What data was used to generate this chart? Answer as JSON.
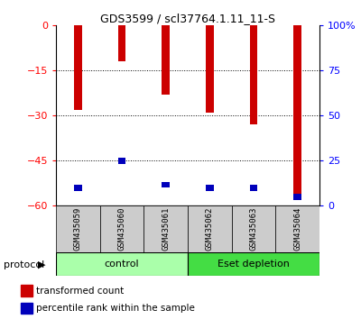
{
  "title": "GDS3599 / scl37764.1.11_11-S",
  "samples": [
    "GSM435059",
    "GSM435060",
    "GSM435061",
    "GSM435062",
    "GSM435063",
    "GSM435064"
  ],
  "red_values": [
    -28,
    -12,
    -23,
    -29,
    -33,
    -57
  ],
  "blue_values": [
    -55,
    -46,
    -54,
    -55,
    -55,
    -58
  ],
  "blue_heights": [
    2.0,
    2.0,
    2.0,
    2.0,
    2.0,
    2.0
  ],
  "ylim": [
    -60,
    0
  ],
  "yticks_left": [
    0,
    -15,
    -30,
    -45,
    -60
  ],
  "yticks_right": [
    0,
    25,
    50,
    75,
    100
  ],
  "right_ylim": [
    0,
    100
  ],
  "groups": [
    {
      "label": "control",
      "start": 0,
      "end": 3,
      "color": "#aaffaa"
    },
    {
      "label": "Eset depletion",
      "start": 3,
      "end": 6,
      "color": "#44dd44"
    }
  ],
  "protocol_label": "protocol",
  "legend_red": "transformed count",
  "legend_blue": "percentile rank within the sample",
  "bar_width": 0.18,
  "red_color": "#CC0000",
  "blue_color": "#0000BB",
  "background_color": "#ffffff",
  "tick_area_color": "#cccccc"
}
